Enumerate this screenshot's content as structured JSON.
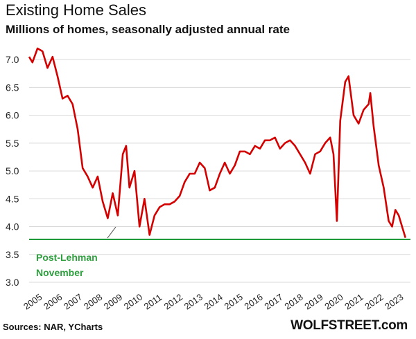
{
  "header": {
    "title": "Existing Home Sales",
    "subtitle": "Millions of homes, seasonally adjusted annual rate"
  },
  "footer": {
    "source": "Sources: NAR, YCharts",
    "brand": "WOLFSTREET.com"
  },
  "colors": {
    "series": "#d40000",
    "reference_line": "#1f9a3a",
    "annotation": "#2e9e3e",
    "grid": "#d9d9d9"
  },
  "chart_data": {
    "type": "line",
    "title": "Existing Home Sales",
    "subtitle": "Millions of homes, seasonally adjusted annual rate",
    "xlabel": "",
    "ylabel": "",
    "ylim": [
      3.0,
      7.3
    ],
    "xlim": [
      "2005-01",
      "2023-12"
    ],
    "grid": "horizontal",
    "y_ticks": [
      3.0,
      3.5,
      4.0,
      4.5,
      5.0,
      5.5,
      6.0,
      6.5,
      7.0
    ],
    "y_tick_labels": [
      "3.0",
      "3.5",
      "4.0",
      "4.5",
      "5.0",
      "5.5",
      "6.0",
      "6.5",
      "7.0"
    ],
    "x_ticks": [
      "2005",
      "2006",
      "2007",
      "2008",
      "2009",
      "2010",
      "2011",
      "2012",
      "2013",
      "2014",
      "2015",
      "2016",
      "2017",
      "2018",
      "2019",
      "2020",
      "2021",
      "2022",
      "2023"
    ],
    "reference_line": {
      "y": 3.77,
      "label_lines": [
        "Post-Lehman",
        "November"
      ]
    },
    "series": [
      {
        "x": [
          "2005-01",
          "2005-03",
          "2005-06",
          "2005-09",
          "2005-12",
          "2006-03",
          "2006-06",
          "2006-09",
          "2006-12",
          "2007-03",
          "2007-06",
          "2007-09",
          "2007-12",
          "2008-03",
          "2008-06",
          "2008-09",
          "2008-12",
          "2009-03",
          "2009-06",
          "2009-09",
          "2009-11",
          "2010-01",
          "2010-04",
          "2010-07",
          "2010-10",
          "2011-01",
          "2011-04",
          "2011-07",
          "2011-10",
          "2012-01",
          "2012-04",
          "2012-07",
          "2012-10",
          "2013-01",
          "2013-04",
          "2013-07",
          "2013-10",
          "2014-01",
          "2014-04",
          "2014-07",
          "2014-10",
          "2015-01",
          "2015-04",
          "2015-07",
          "2015-10",
          "2016-01",
          "2016-04",
          "2016-07",
          "2016-10",
          "2017-01",
          "2017-04",
          "2017-07",
          "2017-10",
          "2018-01",
          "2018-04",
          "2018-07",
          "2018-10",
          "2019-01",
          "2019-04",
          "2019-07",
          "2019-10",
          "2020-01",
          "2020-03",
          "2020-05",
          "2020-07",
          "2020-10",
          "2020-12",
          "2021-03",
          "2021-06",
          "2021-09",
          "2021-12",
          "2022-01",
          "2022-03",
          "2022-06",
          "2022-09",
          "2022-12",
          "2023-02",
          "2023-04",
          "2023-06",
          "2023-08",
          "2023-10"
        ],
        "values": [
          7.05,
          6.95,
          7.2,
          7.15,
          6.85,
          7.05,
          6.7,
          6.3,
          6.35,
          6.2,
          5.75,
          5.05,
          4.9,
          4.7,
          4.9,
          4.45,
          4.15,
          4.6,
          4.2,
          5.3,
          5.45,
          4.7,
          5.0,
          4.0,
          4.5,
          3.85,
          4.2,
          4.35,
          4.4,
          4.4,
          4.45,
          4.55,
          4.8,
          4.95,
          4.95,
          5.15,
          5.05,
          4.65,
          4.7,
          4.95,
          5.15,
          4.95,
          5.1,
          5.35,
          5.35,
          5.3,
          5.45,
          5.4,
          5.55,
          5.55,
          5.6,
          5.4,
          5.5,
          5.55,
          5.45,
          5.3,
          5.15,
          4.95,
          5.3,
          5.35,
          5.5,
          5.6,
          5.3,
          4.1,
          5.9,
          6.6,
          6.7,
          6.0,
          5.85,
          6.1,
          6.2,
          6.4,
          5.8,
          5.1,
          4.7,
          4.1,
          4.0,
          4.3,
          4.2,
          4.0,
          3.8
        ]
      }
    ]
  }
}
